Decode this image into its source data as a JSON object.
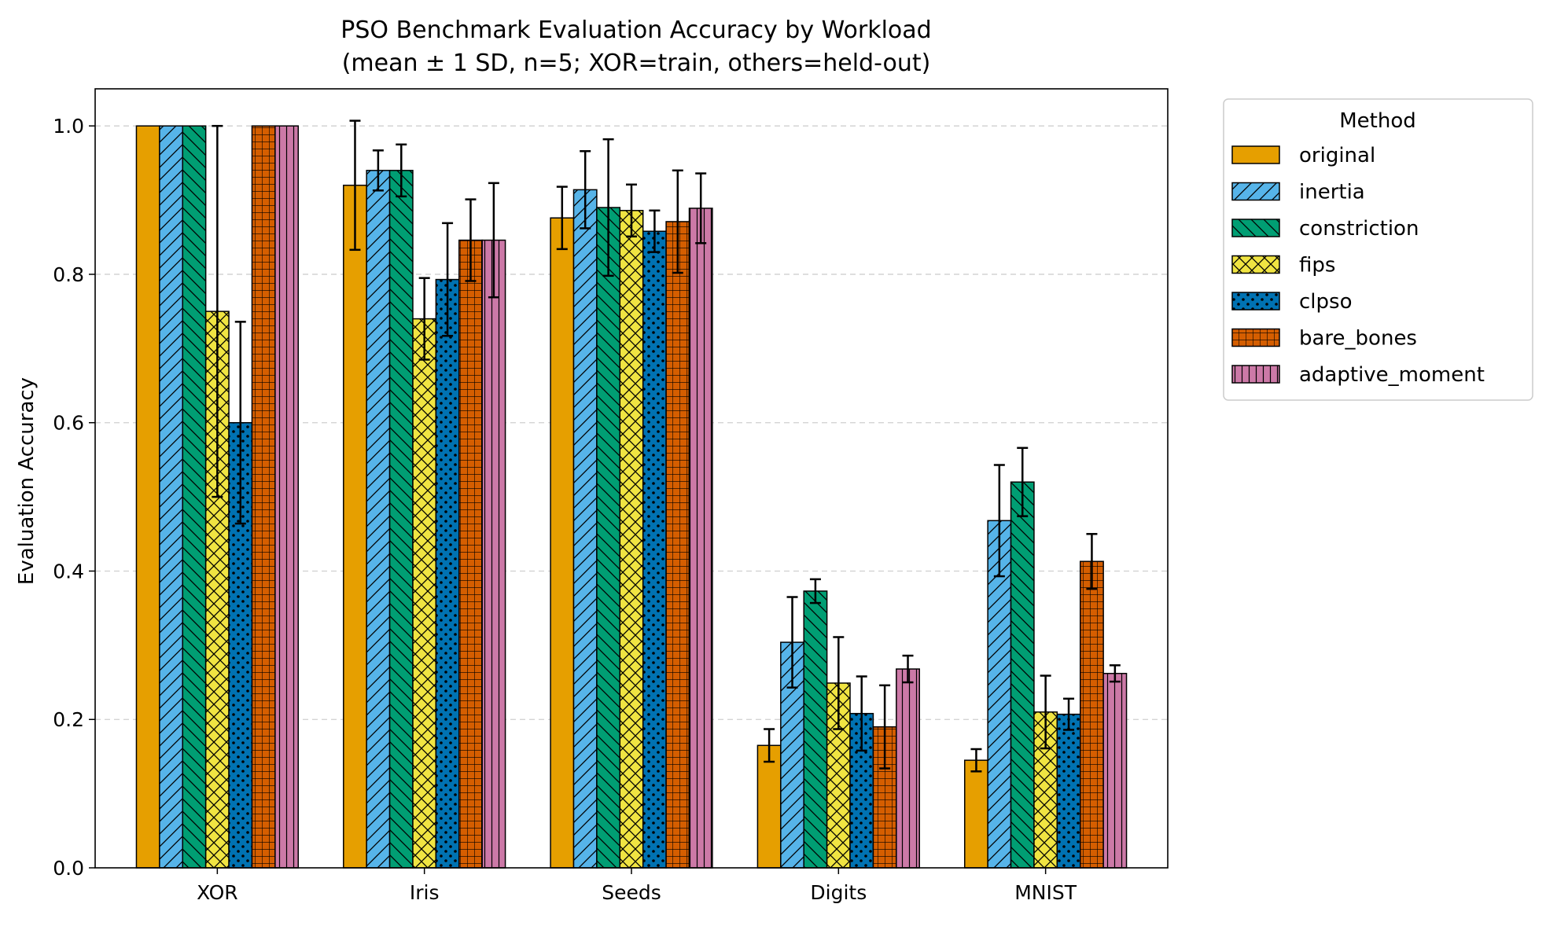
{
  "chart_data": {
    "type": "bar",
    "title": "PSO Benchmark Evaluation Accuracy by Workload",
    "subtitle": "(mean ± 1 SD, n=5; XOR=train, others=held-out)",
    "xlabel": "",
    "ylabel": "Evaluation Accuracy",
    "ylim": [
      0,
      1.05
    ],
    "yticks": [
      "0.0",
      "0.2",
      "0.4",
      "0.6",
      "0.8",
      "1.0"
    ],
    "grid": "y dashed",
    "legend_title": "Method",
    "legend_position": "outside right",
    "categories": [
      "XOR",
      "Iris",
      "Seeds",
      "Digits",
      "MNIST"
    ],
    "series": [
      {
        "name": "original",
        "color": "#E69F00",
        "hatch": "none",
        "values": [
          1.0,
          0.92,
          0.876,
          0.165,
          0.145
        ],
        "errors": [
          0.0,
          0.087,
          0.042,
          0.022,
          0.015
        ]
      },
      {
        "name": "inertia",
        "color": "#56B4E9",
        "hatch": "diagonal",
        "values": [
          1.0,
          0.94,
          0.914,
          0.304,
          0.468
        ],
        "errors": [
          0.0,
          0.027,
          0.052,
          0.061,
          0.075
        ]
      },
      {
        "name": "constriction",
        "color": "#009E73",
        "hatch": "backdiagonal",
        "values": [
          1.0,
          0.94,
          0.89,
          0.373,
          0.52
        ],
        "errors": [
          0.0,
          0.035,
          0.092,
          0.016,
          0.046
        ]
      },
      {
        "name": "fips",
        "color": "#F0E442",
        "hatch": "crosshatch",
        "values": [
          0.75,
          0.74,
          0.886,
          0.249,
          0.21
        ],
        "errors": [
          0.25,
          0.055,
          0.035,
          0.062,
          0.049
        ]
      },
      {
        "name": "clpso",
        "color": "#0072B2",
        "hatch": "dots",
        "values": [
          0.6,
          0.793,
          0.858,
          0.208,
          0.207
        ],
        "errors": [
          0.136,
          0.076,
          0.028,
          0.05,
          0.021
        ]
      },
      {
        "name": "bare_bones",
        "color": "#D55E00",
        "hatch": "grid",
        "values": [
          1.0,
          0.846,
          0.871,
          0.19,
          0.413
        ],
        "errors": [
          0.0,
          0.055,
          0.069,
          0.056,
          0.037
        ]
      },
      {
        "name": "adaptive_moment",
        "color": "#CC79A7",
        "hatch": "vertical",
        "values": [
          1.0,
          0.846,
          0.889,
          0.268,
          0.262
        ],
        "errors": [
          0.0,
          0.077,
          0.047,
          0.018,
          0.011
        ]
      }
    ]
  }
}
